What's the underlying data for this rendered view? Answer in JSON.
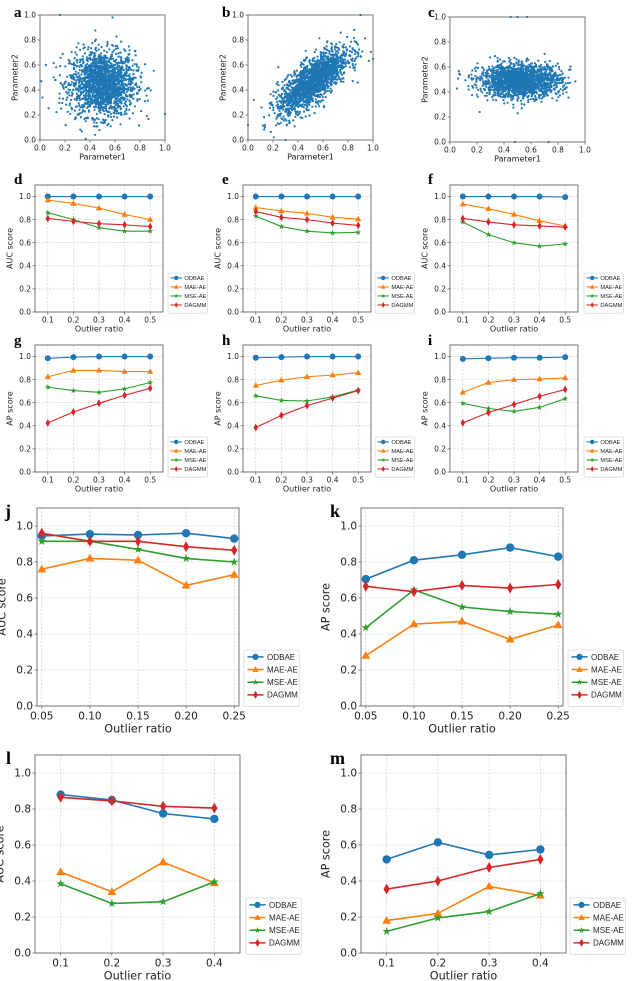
{
  "figure": {
    "series_colors": {
      "ODBAE": "#1f77b4",
      "MAE-AE": "#ff7f0e",
      "MSE-AE": "#2ca02c",
      "DAGMM": "#d62728"
    },
    "scatter_color": "#1f77b4"
  },
  "chart_data": [
    {
      "panel": "a",
      "type": "scatter",
      "title": "",
      "xlabel": "Parameter1",
      "ylabel": "Parameter2",
      "xlim": [
        0.0,
        1.0
      ],
      "ylim": [
        0.0,
        1.0
      ],
      "xticks": [
        "0.0",
        "0.2",
        "0.4",
        "0.6",
        "0.8",
        "1.0"
      ],
      "yticks": [
        "0.0",
        "0.2",
        "0.4",
        "0.6",
        "0.8",
        "1.0"
      ],
      "grid": false,
      "distribution": {
        "center": [
          0.5,
          0.45
        ],
        "spread": [
          0.13,
          0.13
        ],
        "correlation": 0.0
      },
      "outliers": [
        [
          0.16,
          1.0
        ],
        [
          0.58,
          0.98
        ],
        [
          1.0,
          0.21
        ],
        [
          0.02,
          0.34
        ]
      ]
    },
    {
      "panel": "b",
      "type": "scatter",
      "title": "",
      "xlabel": "Parameter1",
      "ylabel": "Parameter2",
      "xlim": [
        0.0,
        1.0
      ],
      "ylim": [
        0.0,
        1.0
      ],
      "xticks": [
        "0.0",
        "0.2",
        "0.4",
        "0.6",
        "0.8",
        "1.0"
      ],
      "yticks": [
        "0.0",
        "0.2",
        "0.4",
        "0.6",
        "0.8",
        "1.0"
      ],
      "grid": false,
      "distribution": {
        "center": [
          0.52,
          0.47
        ],
        "spread": [
          0.14,
          0.13
        ],
        "correlation": 0.75
      },
      "outliers": [
        [
          0.9,
          1.0
        ],
        [
          0.0,
          0.12
        ],
        [
          0.3,
          0.0
        ],
        [
          1.0,
          0.65
        ]
      ]
    },
    {
      "panel": "c",
      "type": "scatter",
      "title": "",
      "xlabel": "Parameter1",
      "ylabel": "Parameter2",
      "xlim": [
        0.0,
        1.0
      ],
      "ylim": [
        0.0,
        1.0
      ],
      "xticks": [
        "0.0",
        "0.2",
        "0.4",
        "0.6",
        "0.8",
        "1.0"
      ],
      "yticks": [
        "0.0",
        "0.2",
        "0.4",
        "0.6",
        "0.8",
        "1.0"
      ],
      "grid": false,
      "distribution": {
        "center": [
          0.52,
          0.49
        ],
        "spread": [
          0.15,
          0.065
        ],
        "correlation": 0.0
      },
      "outliers": [
        [
          0.45,
          1.0
        ],
        [
          0.5,
          1.0
        ],
        [
          0.57,
          1.0
        ],
        [
          0.48,
          0.0
        ],
        [
          0.73,
          0.0
        ],
        [
          0.22,
          0.24
        ],
        [
          0.5,
          0.23
        ]
      ]
    },
    {
      "panel": "d",
      "type": "line",
      "xlabel": "Outlier ratio",
      "ylabel": "AUC score",
      "x": [
        0.1,
        0.2,
        0.3,
        0.4,
        0.5
      ],
      "xticks": [
        "0.1",
        "0.2",
        "0.3",
        "0.4",
        "0.5"
      ],
      "yticks": [
        "0.0",
        "0.2",
        "0.4",
        "0.6",
        "0.8",
        "1.0"
      ],
      "xlim": [
        0.05,
        0.55
      ],
      "ylim": [
        0.0,
        1.1
      ],
      "grid": true,
      "legend": "outside-bottom-right",
      "series": [
        {
          "name": "ODBAE",
          "marker": "circle",
          "values": [
            1.0,
            1.0,
            1.0,
            1.0,
            1.0
          ]
        },
        {
          "name": "MAE-AE",
          "marker": "triangle",
          "values": [
            0.97,
            0.94,
            0.9,
            0.845,
            0.8
          ]
        },
        {
          "name": "MSE-AE",
          "marker": "star",
          "values": [
            0.86,
            0.8,
            0.73,
            0.7,
            0.7
          ]
        },
        {
          "name": "DAGMM",
          "marker": "diamond",
          "values": [
            0.81,
            0.785,
            0.765,
            0.755,
            0.74
          ]
        }
      ]
    },
    {
      "panel": "e",
      "type": "line",
      "xlabel": "Outlier ratio",
      "ylabel": "AUC score",
      "x": [
        0.1,
        0.2,
        0.3,
        0.4,
        0.5
      ],
      "xticks": [
        "0.1",
        "0.2",
        "0.3",
        "0.4",
        "0.5"
      ],
      "yticks": [
        "0.0",
        "0.2",
        "0.4",
        "0.6",
        "0.8",
        "1.0"
      ],
      "xlim": [
        0.05,
        0.55
      ],
      "ylim": [
        0.0,
        1.1
      ],
      "grid": true,
      "legend": "outside-bottom-right",
      "series": [
        {
          "name": "ODBAE",
          "marker": "circle",
          "values": [
            1.0,
            1.0,
            1.0,
            1.0,
            1.0
          ]
        },
        {
          "name": "MAE-AE",
          "marker": "triangle",
          "values": [
            0.905,
            0.875,
            0.855,
            0.82,
            0.805
          ]
        },
        {
          "name": "MSE-AE",
          "marker": "star",
          "values": [
            0.83,
            0.74,
            0.7,
            0.685,
            0.69
          ]
        },
        {
          "name": "DAGMM",
          "marker": "diamond",
          "values": [
            0.87,
            0.82,
            0.8,
            0.77,
            0.75
          ]
        }
      ]
    },
    {
      "panel": "f",
      "type": "line",
      "xlabel": "Outlier ratio",
      "ylabel": "AUC score",
      "x": [
        0.1,
        0.2,
        0.3,
        0.4,
        0.5
      ],
      "xticks": [
        "0.1",
        "0.2",
        "0.3",
        "0.4",
        "0.5"
      ],
      "yticks": [
        "0.0",
        "0.2",
        "0.4",
        "0.6",
        "0.8",
        "1.0"
      ],
      "xlim": [
        0.05,
        0.55
      ],
      "ylim": [
        0.0,
        1.1
      ],
      "grid": true,
      "legend": "outside-bottom-right",
      "series": [
        {
          "name": "ODBAE",
          "marker": "circle",
          "values": [
            1.0,
            1.0,
            1.0,
            1.0,
            0.995
          ]
        },
        {
          "name": "MAE-AE",
          "marker": "triangle",
          "values": [
            0.935,
            0.895,
            0.845,
            0.79,
            0.745
          ]
        },
        {
          "name": "MSE-AE",
          "marker": "star",
          "values": [
            0.78,
            0.67,
            0.6,
            0.57,
            0.59
          ]
        },
        {
          "name": "DAGMM",
          "marker": "diamond",
          "values": [
            0.81,
            0.78,
            0.755,
            0.745,
            0.735
          ]
        }
      ]
    },
    {
      "panel": "g",
      "type": "line",
      "xlabel": "Outlier ratio",
      "ylabel": "AP score",
      "x": [
        0.1,
        0.2,
        0.3,
        0.4,
        0.5
      ],
      "xticks": [
        "0.1",
        "0.2",
        "0.3",
        "0.4",
        "0.5"
      ],
      "yticks": [
        "0.0",
        "0.2",
        "0.4",
        "0.6",
        "0.8",
        "1.0"
      ],
      "xlim": [
        0.05,
        0.55
      ],
      "ylim": [
        0.0,
        1.1
      ],
      "grid": true,
      "legend": "outside-bottom-right",
      "series": [
        {
          "name": "ODBAE",
          "marker": "circle",
          "values": [
            0.985,
            0.995,
            1.0,
            1.0,
            1.0
          ]
        },
        {
          "name": "MAE-AE",
          "marker": "triangle",
          "values": [
            0.825,
            0.88,
            0.88,
            0.87,
            0.87
          ]
        },
        {
          "name": "MSE-AE",
          "marker": "star",
          "values": [
            0.735,
            0.705,
            0.69,
            0.72,
            0.775
          ]
        },
        {
          "name": "DAGMM",
          "marker": "diamond",
          "values": [
            0.425,
            0.52,
            0.595,
            0.665,
            0.725
          ]
        }
      ]
    },
    {
      "panel": "h",
      "type": "line",
      "xlabel": "Outlier ratio",
      "ylabel": "AP score",
      "x": [
        0.1,
        0.2,
        0.3,
        0.4,
        0.5
      ],
      "xticks": [
        "0.1",
        "0.2",
        "0.3",
        "0.4",
        "0.5"
      ],
      "yticks": [
        "0.0",
        "0.2",
        "0.4",
        "0.6",
        "0.8",
        "1.0"
      ],
      "xlim": [
        0.05,
        0.55
      ],
      "ylim": [
        0.0,
        1.1
      ],
      "grid": true,
      "legend": "outside-bottom-right",
      "series": [
        {
          "name": "ODBAE",
          "marker": "circle",
          "values": [
            0.99,
            0.995,
            1.0,
            1.0,
            1.0
          ]
        },
        {
          "name": "MAE-AE",
          "marker": "triangle",
          "values": [
            0.75,
            0.795,
            0.825,
            0.84,
            0.86
          ]
        },
        {
          "name": "MSE-AE",
          "marker": "star",
          "values": [
            0.66,
            0.62,
            0.615,
            0.65,
            0.71
          ]
        },
        {
          "name": "DAGMM",
          "marker": "diamond",
          "values": [
            0.385,
            0.49,
            0.575,
            0.64,
            0.705
          ]
        }
      ]
    },
    {
      "panel": "i",
      "type": "line",
      "xlabel": "Outlier ratio",
      "ylabel": "AP score",
      "x": [
        0.1,
        0.2,
        0.3,
        0.4,
        0.5
      ],
      "xticks": [
        "0.1",
        "0.2",
        "0.3",
        "0.4",
        "0.5"
      ],
      "yticks": [
        "0.0",
        "0.2",
        "0.4",
        "0.6",
        "0.8",
        "1.0"
      ],
      "xlim": [
        0.05,
        0.55
      ],
      "ylim": [
        0.0,
        1.1
      ],
      "grid": true,
      "legend": "outside-bottom-right",
      "series": [
        {
          "name": "ODBAE",
          "marker": "circle",
          "values": [
            0.98,
            0.985,
            0.99,
            0.99,
            0.995
          ]
        },
        {
          "name": "MAE-AE",
          "marker": "triangle",
          "values": [
            0.69,
            0.775,
            0.8,
            0.805,
            0.815
          ]
        },
        {
          "name": "MSE-AE",
          "marker": "star",
          "values": [
            0.595,
            0.55,
            0.525,
            0.56,
            0.635
          ]
        },
        {
          "name": "DAGMM",
          "marker": "diamond",
          "values": [
            0.425,
            0.515,
            0.585,
            0.655,
            0.715
          ]
        }
      ]
    },
    {
      "panel": "j",
      "type": "line",
      "xlabel": "Outlier ratio",
      "ylabel": "AUC score",
      "x": [
        0.05,
        0.1,
        0.15,
        0.2,
        0.25
      ],
      "xticks": [
        "0.05",
        "0.10",
        "0.15",
        "0.20",
        "0.25"
      ],
      "yticks": [
        "0.0",
        "0.2",
        "0.4",
        "0.6",
        "0.8",
        "1.0"
      ],
      "xlim": [
        0.045,
        0.255
      ],
      "ylim": [
        0.0,
        1.1
      ],
      "grid": true,
      "legend": "outside-bottom-right",
      "series": [
        {
          "name": "ODBAE",
          "marker": "circle",
          "values": [
            0.945,
            0.955,
            0.95,
            0.96,
            0.93
          ]
        },
        {
          "name": "MAE-AE",
          "marker": "triangle",
          "values": [
            0.76,
            0.82,
            0.81,
            0.67,
            0.73
          ]
        },
        {
          "name": "MSE-AE",
          "marker": "star",
          "values": [
            0.915,
            0.915,
            0.87,
            0.82,
            0.8
          ]
        },
        {
          "name": "DAGMM",
          "marker": "diamond",
          "values": [
            0.96,
            0.915,
            0.915,
            0.885,
            0.865
          ]
        }
      ]
    },
    {
      "panel": "k",
      "type": "line",
      "xlabel": "Outlier ratio",
      "ylabel": "AP score",
      "x": [
        0.05,
        0.1,
        0.15,
        0.2,
        0.25
      ],
      "xticks": [
        "0.05",
        "0.10",
        "0.15",
        "0.20",
        "0.25"
      ],
      "yticks": [
        "0.0",
        "0.2",
        "0.4",
        "0.6",
        "0.8",
        "1.0"
      ],
      "xlim": [
        0.045,
        0.255
      ],
      "ylim": [
        0.0,
        1.1
      ],
      "grid": true,
      "legend": "outside-bottom-right",
      "series": [
        {
          "name": "ODBAE",
          "marker": "circle",
          "values": [
            0.705,
            0.81,
            0.84,
            0.88,
            0.83
          ]
        },
        {
          "name": "MAE-AE",
          "marker": "triangle",
          "values": [
            0.28,
            0.455,
            0.47,
            0.37,
            0.45
          ]
        },
        {
          "name": "MSE-AE",
          "marker": "star",
          "values": [
            0.435,
            0.645,
            0.55,
            0.525,
            0.51
          ]
        },
        {
          "name": "DAGMM",
          "marker": "diamond",
          "values": [
            0.665,
            0.635,
            0.67,
            0.655,
            0.675
          ]
        }
      ]
    },
    {
      "panel": "l",
      "type": "line",
      "xlabel": "Outlier ratio",
      "ylabel": "AUC score",
      "x": [
        0.1,
        0.2,
        0.3,
        0.4
      ],
      "xticks": [
        "0.1",
        "0.2",
        "0.3",
        "0.4"
      ],
      "yticks": [
        "0.0",
        "0.2",
        "0.4",
        "0.6",
        "0.8",
        "1.0"
      ],
      "xlim": [
        0.05,
        0.45
      ],
      "ylim": [
        0.0,
        1.1
      ],
      "grid": true,
      "legend": "outside-bottom-right",
      "series": [
        {
          "name": "ODBAE",
          "marker": "circle",
          "values": [
            0.88,
            0.85,
            0.775,
            0.745
          ]
        },
        {
          "name": "MAE-AE",
          "marker": "triangle",
          "values": [
            0.45,
            0.34,
            0.505,
            0.39
          ]
        },
        {
          "name": "MSE-AE",
          "marker": "star",
          "values": [
            0.385,
            0.275,
            0.285,
            0.395
          ]
        },
        {
          "name": "DAGMM",
          "marker": "diamond",
          "values": [
            0.865,
            0.845,
            0.815,
            0.805
          ]
        }
      ]
    },
    {
      "panel": "m",
      "type": "line",
      "xlabel": "Outlier ratio",
      "ylabel": "AP score",
      "x": [
        0.1,
        0.2,
        0.3,
        0.4
      ],
      "xticks": [
        "0.1",
        "0.2",
        "0.3",
        "0.4"
      ],
      "yticks": [
        "0.0",
        "0.2",
        "0.4",
        "0.6",
        "0.8",
        "1.0"
      ],
      "xlim": [
        0.05,
        0.45
      ],
      "ylim": [
        0.0,
        1.1
      ],
      "grid": true,
      "legend": "outside-bottom-right",
      "series": [
        {
          "name": "ODBAE",
          "marker": "circle",
          "values": [
            0.52,
            0.615,
            0.545,
            0.575
          ]
        },
        {
          "name": "MAE-AE",
          "marker": "triangle",
          "values": [
            0.18,
            0.22,
            0.37,
            0.32
          ]
        },
        {
          "name": "MSE-AE",
          "marker": "star",
          "values": [
            0.12,
            0.195,
            0.23,
            0.33
          ]
        },
        {
          "name": "DAGMM",
          "marker": "diamond",
          "values": [
            0.355,
            0.4,
            0.475,
            0.52
          ]
        }
      ]
    }
  ]
}
